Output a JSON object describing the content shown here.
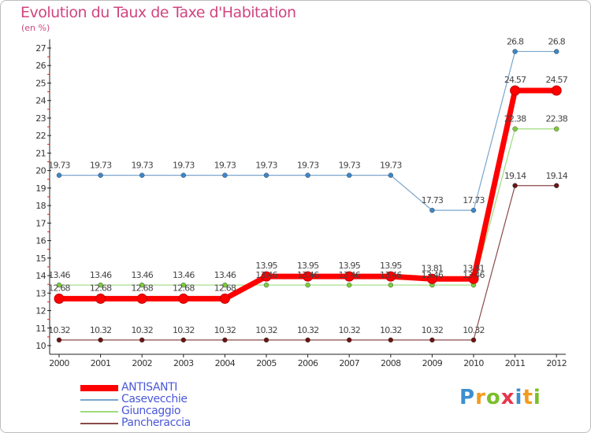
{
  "title": "Evolution du Taux de Taxe d'Habitation",
  "subtitle": "(en %)",
  "logo": {
    "text": "Proxiti",
    "letters": [
      {
        "ch": "P",
        "color": "#3b8fd1"
      },
      {
        "ch": "r",
        "color": "#f29b1d"
      },
      {
        "ch": "o",
        "color": "#7bbf2a"
      },
      {
        "ch": "x",
        "color": "#e8354a"
      },
      {
        "ch": "i",
        "color": "#3b8fd1"
      },
      {
        "ch": "t",
        "color": "#f29b1d"
      },
      {
        "ch": "i",
        "color": "#7bbf2a"
      }
    ]
  },
  "chart_data": {
    "type": "line",
    "x": [
      "2000",
      "2001",
      "2002",
      "2003",
      "2004",
      "2005",
      "2006",
      "2007",
      "2008",
      "2009",
      "2010",
      "2011",
      "2012"
    ],
    "ylim": [
      10,
      27
    ],
    "yticks": [
      10,
      11,
      12,
      13,
      14,
      15,
      16,
      17,
      18,
      19,
      20,
      21,
      22,
      23,
      24,
      25,
      26,
      27
    ],
    "grid": false,
    "legend_position": "bottom-left",
    "series": [
      {
        "name": "Casevecchie",
        "color": "#7aa6cc",
        "marker_color": "#3d86c6",
        "width": 1.2,
        "values": [
          19.73,
          19.73,
          19.73,
          19.73,
          19.73,
          19.73,
          19.73,
          19.73,
          19.73,
          17.73,
          17.73,
          26.8,
          26.8
        ],
        "labels": [
          "19.73",
          "19.73",
          "19.73",
          "19.73",
          "19.73",
          "19.73",
          "19.73",
          "19.73",
          "19.73",
          "17.73",
          "17.73",
          "26.8",
          "26.8"
        ]
      },
      {
        "name": "Giuncaggio",
        "color": "#9edc7c",
        "marker_color": "#7ccc3c",
        "width": 1.2,
        "values": [
          13.46,
          13.46,
          13.46,
          13.46,
          13.46,
          13.46,
          13.46,
          13.46,
          13.46,
          13.46,
          13.46,
          22.38,
          22.38
        ],
        "labels": [
          "13.46",
          "13.46",
          "13.46",
          "13.46",
          "13.46",
          "13.46",
          "13.46",
          "13.46",
          "13.46",
          "13.46",
          "13.46",
          "22.38",
          "22.38"
        ]
      },
      {
        "name": "Pancheraccia",
        "color": "#8a4a4a",
        "marker_color": "#6a1414",
        "width": 1.2,
        "values": [
          10.32,
          10.32,
          10.32,
          10.32,
          10.32,
          10.32,
          10.32,
          10.32,
          10.32,
          10.32,
          10.32,
          19.14,
          19.14
        ],
        "labels": [
          "10.32",
          "10.32",
          "10.32",
          "10.32",
          "10.32",
          "10.32",
          "10.32",
          "10.32",
          "10.32",
          "10.32",
          "10.32",
          "19.14",
          "19.14"
        ]
      },
      {
        "name": "ANTISANTI",
        "color": "#ff0000",
        "marker_color": "#ff0000",
        "width": 7,
        "values": [
          12.68,
          12.68,
          12.68,
          12.68,
          12.68,
          13.95,
          13.95,
          13.95,
          13.95,
          13.81,
          13.81,
          24.57,
          24.57
        ],
        "labels": [
          "12.68",
          "12.68",
          "12.68",
          "12.68",
          "12.68",
          "13.95",
          "13.95",
          "13.95",
          "13.95",
          "13.81",
          "13.81",
          "24.57",
          "24.57"
        ]
      }
    ],
    "legend_order": [
      "ANTISANTI",
      "Casevecchie",
      "Giuncaggio",
      "Pancheraccia"
    ]
  }
}
